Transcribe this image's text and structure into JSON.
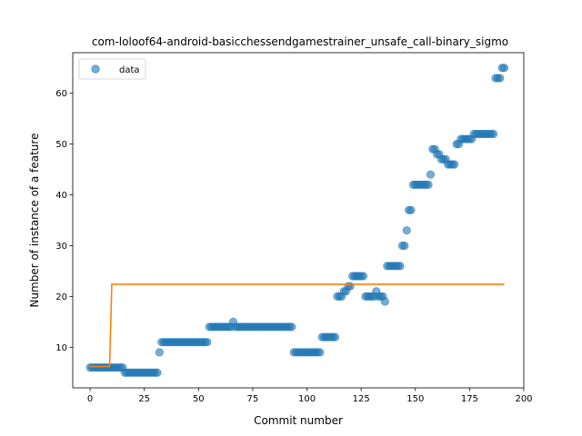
{
  "chart_data": {
    "type": "scatter",
    "title": "com-loloof64-android-basicchessendgamestrainer_unsafe_call-binary_sigmo",
    "xlabel": "Commit number",
    "ylabel": "Number of instance of a feature",
    "xlim": [
      -8,
      200
    ],
    "ylim": [
      2,
      68
    ],
    "xticks": [
      0,
      25,
      50,
      75,
      100,
      125,
      150,
      175,
      200
    ],
    "yticks": [
      10,
      20,
      30,
      40,
      50,
      60
    ],
    "grid": false,
    "legend": {
      "placement": "top-left",
      "entries": [
        "data"
      ]
    },
    "colors": {
      "data": "#1f77b4",
      "fit": "#ff7f0e"
    },
    "series": [
      {
        "name": "data",
        "kind": "scatter",
        "points": [
          [
            0,
            6
          ],
          [
            1,
            6
          ],
          [
            2,
            6
          ],
          [
            3,
            6
          ],
          [
            4,
            6
          ],
          [
            5,
            6
          ],
          [
            6,
            6
          ],
          [
            7,
            6
          ],
          [
            8,
            6
          ],
          [
            9,
            6
          ],
          [
            10,
            6
          ],
          [
            11,
            6
          ],
          [
            12,
            6
          ],
          [
            13,
            6
          ],
          [
            14,
            6
          ],
          [
            15,
            6
          ],
          [
            16,
            5
          ],
          [
            17,
            5
          ],
          [
            18,
            5
          ],
          [
            19,
            5
          ],
          [
            20,
            5
          ],
          [
            21,
            5
          ],
          [
            22,
            5
          ],
          [
            23,
            5
          ],
          [
            24,
            5
          ],
          [
            25,
            5
          ],
          [
            26,
            5
          ],
          [
            27,
            5
          ],
          [
            28,
            5
          ],
          [
            29,
            5
          ],
          [
            30,
            5
          ],
          [
            31,
            5
          ],
          [
            32,
            9
          ],
          [
            33,
            11
          ],
          [
            34,
            11
          ],
          [
            35,
            11
          ],
          [
            36,
            11
          ],
          [
            37,
            11
          ],
          [
            38,
            11
          ],
          [
            39,
            11
          ],
          [
            40,
            11
          ],
          [
            41,
            11
          ],
          [
            42,
            11
          ],
          [
            43,
            11
          ],
          [
            44,
            11
          ],
          [
            45,
            11
          ],
          [
            46,
            11
          ],
          [
            47,
            11
          ],
          [
            48,
            11
          ],
          [
            49,
            11
          ],
          [
            50,
            11
          ],
          [
            51,
            11
          ],
          [
            52,
            11
          ],
          [
            53,
            11
          ],
          [
            54,
            11
          ],
          [
            55,
            14
          ],
          [
            56,
            14
          ],
          [
            57,
            14
          ],
          [
            58,
            14
          ],
          [
            59,
            14
          ],
          [
            60,
            14
          ],
          [
            61,
            14
          ],
          [
            62,
            14
          ],
          [
            63,
            14
          ],
          [
            64,
            14
          ],
          [
            65,
            14
          ],
          [
            66,
            15
          ],
          [
            67,
            14
          ],
          [
            68,
            14
          ],
          [
            69,
            14
          ],
          [
            70,
            14
          ],
          [
            71,
            14
          ],
          [
            72,
            14
          ],
          [
            73,
            14
          ],
          [
            74,
            14
          ],
          [
            75,
            14
          ],
          [
            76,
            14
          ],
          [
            77,
            14
          ],
          [
            78,
            14
          ],
          [
            79,
            14
          ],
          [
            80,
            14
          ],
          [
            81,
            14
          ],
          [
            82,
            14
          ],
          [
            83,
            14
          ],
          [
            84,
            14
          ],
          [
            85,
            14
          ],
          [
            86,
            14
          ],
          [
            87,
            14
          ],
          [
            88,
            14
          ],
          [
            89,
            14
          ],
          [
            90,
            14
          ],
          [
            91,
            14
          ],
          [
            92,
            14
          ],
          [
            93,
            14
          ],
          [
            94,
            9
          ],
          [
            95,
            9
          ],
          [
            96,
            9
          ],
          [
            97,
            9
          ],
          [
            98,
            9
          ],
          [
            99,
            9
          ],
          [
            100,
            9
          ],
          [
            101,
            9
          ],
          [
            102,
            9
          ],
          [
            103,
            9
          ],
          [
            104,
            9
          ],
          [
            105,
            9
          ],
          [
            106,
            9
          ],
          [
            107,
            12
          ],
          [
            108,
            12
          ],
          [
            109,
            12
          ],
          [
            110,
            12
          ],
          [
            111,
            12
          ],
          [
            112,
            12
          ],
          [
            113,
            12
          ],
          [
            114,
            20
          ],
          [
            115,
            20
          ],
          [
            116,
            20
          ],
          [
            117,
            21
          ],
          [
            118,
            21
          ],
          [
            119,
            22
          ],
          [
            120,
            22
          ],
          [
            121,
            24
          ],
          [
            122,
            24
          ],
          [
            123,
            24
          ],
          [
            124,
            24
          ],
          [
            125,
            24
          ],
          [
            126,
            24
          ],
          [
            127,
            20
          ],
          [
            128,
            20
          ],
          [
            129,
            20
          ],
          [
            130,
            20
          ],
          [
            131,
            20
          ],
          [
            132,
            21
          ],
          [
            133,
            20
          ],
          [
            134,
            20
          ],
          [
            135,
            20
          ],
          [
            136,
            19
          ],
          [
            137,
            26
          ],
          [
            138,
            26
          ],
          [
            139,
            26
          ],
          [
            140,
            26
          ],
          [
            141,
            26
          ],
          [
            142,
            26
          ],
          [
            143,
            26
          ],
          [
            144,
            30
          ],
          [
            145,
            30
          ],
          [
            146,
            33
          ],
          [
            147,
            37
          ],
          [
            148,
            37
          ],
          [
            149,
            42
          ],
          [
            150,
            42
          ],
          [
            151,
            42
          ],
          [
            152,
            42
          ],
          [
            153,
            42
          ],
          [
            154,
            42
          ],
          [
            155,
            42
          ],
          [
            156,
            42
          ],
          [
            157,
            44
          ],
          [
            158,
            49
          ],
          [
            159,
            49
          ],
          [
            160,
            48
          ],
          [
            161,
            48
          ],
          [
            162,
            47
          ],
          [
            163,
            47
          ],
          [
            164,
            47
          ],
          [
            165,
            46
          ],
          [
            166,
            46
          ],
          [
            167,
            46
          ],
          [
            168,
            46
          ],
          [
            169,
            50
          ],
          [
            170,
            50
          ],
          [
            171,
            51
          ],
          [
            172,
            51
          ],
          [
            173,
            51
          ],
          [
            174,
            51
          ],
          [
            175,
            51
          ],
          [
            176,
            51
          ],
          [
            177,
            52
          ],
          [
            178,
            52
          ],
          [
            179,
            52
          ],
          [
            180,
            52
          ],
          [
            181,
            52
          ],
          [
            182,
            52
          ],
          [
            183,
            52
          ],
          [
            184,
            52
          ],
          [
            185,
            52
          ],
          [
            186,
            52
          ],
          [
            187,
            63
          ],
          [
            188,
            63
          ],
          [
            189,
            63
          ],
          [
            190,
            65
          ],
          [
            191,
            65
          ]
        ]
      },
      {
        "kind": "line",
        "points": [
          [
            0,
            6.2
          ],
          [
            9,
            6.2
          ],
          [
            10,
            22.4
          ],
          [
            191,
            22.4
          ]
        ]
      }
    ]
  }
}
